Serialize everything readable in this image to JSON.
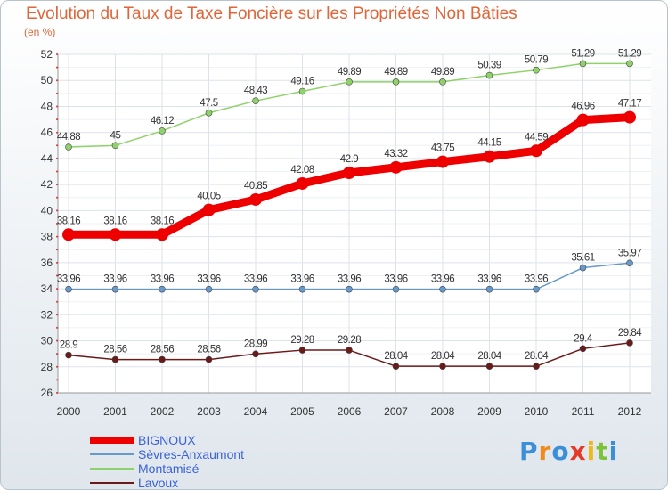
{
  "chart_data": {
    "type": "line",
    "title": "Evolution du Taux de Taxe Foncière sur les Propriétés Non Bâties",
    "subtitle": "(en %)",
    "x": [
      "2000",
      "2001",
      "2002",
      "2003",
      "2004",
      "2005",
      "2006",
      "2007",
      "2008",
      "2009",
      "2010",
      "2011",
      "2012"
    ],
    "ylim": [
      26,
      52
    ],
    "yticks": [
      26,
      28,
      30,
      32,
      34,
      36,
      38,
      40,
      42,
      44,
      46,
      48,
      50,
      52
    ],
    "grid": true,
    "legend_position": "bottom-left",
    "series": [
      {
        "name": "BIGNOUX",
        "color": "#ee0000",
        "width": "thick",
        "values": [
          38.16,
          38.16,
          38.16,
          40.05,
          40.85,
          42.08,
          42.9,
          43.32,
          43.75,
          44.15,
          44.59,
          46.96,
          47.17
        ],
        "labels": [
          "38.16",
          "38.16",
          "38.16",
          "40.05",
          "40.85",
          "42.08",
          "42.9",
          "43.32",
          "43.75",
          "44.15",
          "44.59",
          "46.96",
          "47.17"
        ]
      },
      {
        "name": "Sèvres-Anxaumont",
        "color": "#6699cc",
        "width": "thin",
        "values": [
          33.96,
          33.96,
          33.96,
          33.96,
          33.96,
          33.96,
          33.96,
          33.96,
          33.96,
          33.96,
          33.96,
          35.61,
          35.97
        ],
        "labels": [
          "33.96",
          "33.96",
          "33.96",
          "33.96",
          "33.96",
          "33.96",
          "33.96",
          "33.96",
          "33.96",
          "33.96",
          "33.96",
          "35.61",
          "35.97"
        ]
      },
      {
        "name": "Montamisé",
        "color": "#8fd16a",
        "width": "thin",
        "values": [
          44.88,
          45,
          46.12,
          47.5,
          48.43,
          49.16,
          49.89,
          49.89,
          49.89,
          50.39,
          50.79,
          51.29,
          51.29
        ],
        "labels": [
          "44.88",
          "45",
          "46.12",
          "47.5",
          "48.43",
          "49.16",
          "49.89",
          "49.89",
          "49.89",
          "50.39",
          "50.79",
          "51.29",
          "51.29"
        ]
      },
      {
        "name": "Lavoux",
        "color": "#6b1a1a",
        "width": "thin",
        "values": [
          28.9,
          28.56,
          28.56,
          28.56,
          28.99,
          29.28,
          29.28,
          28.04,
          28.04,
          28.04,
          28.04,
          29.4,
          29.84
        ],
        "labels": [
          "28.9",
          "28.56",
          "28.56",
          "28.56",
          "28.99",
          "29.28",
          "29.28",
          "28.04",
          "28.04",
          "28.04",
          "28.04",
          "29.4",
          "29.84"
        ]
      }
    ]
  },
  "logo": {
    "text": "Proxiti"
  }
}
